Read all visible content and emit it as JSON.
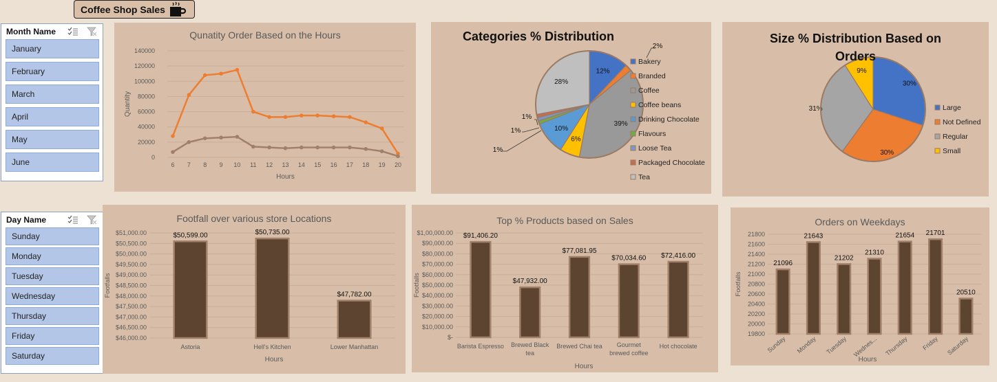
{
  "app_title": "Coffee Shop Sales",
  "month_slicer": {
    "header": "Month Name",
    "items": [
      "January",
      "February",
      "March",
      "April",
      "May",
      "June"
    ]
  },
  "day_slicer": {
    "header": "Day Name",
    "items": [
      "Sunday",
      "Monday",
      "Tuesday",
      "Wednesday",
      "Thursday",
      "Friday",
      "Saturday"
    ]
  },
  "colors": {
    "accent_orange": "#ed7d31",
    "accent_brown": "#a0806a",
    "bar": "#5c4430",
    "slicer": "#b4c6e7"
  },
  "chart_data": [
    {
      "id": "hours",
      "type": "line",
      "title": "Qunatity Order Based on the Hours",
      "xlabel": "Hours",
      "ylabel": "Quantity",
      "x": [
        6,
        7,
        8,
        9,
        10,
        11,
        12,
        13,
        14,
        15,
        16,
        17,
        18,
        19,
        20
      ],
      "ylim": [
        0,
        140000
      ],
      "yticks": [
        "0",
        "20000",
        "40000",
        "60000",
        "80000",
        "100000",
        "120000",
        "140000"
      ],
      "series": [
        {
          "color": "#ed7d31",
          "values": [
            28000,
            82000,
            108000,
            110000,
            115000,
            60000,
            53000,
            53000,
            55000,
            55000,
            54000,
            53000,
            46000,
            38000,
            5000
          ]
        },
        {
          "color": "#a0806a",
          "values": [
            7000,
            20000,
            25000,
            26000,
            27000,
            14000,
            13000,
            12000,
            13000,
            13000,
            13000,
            13000,
            11000,
            8000,
            1500
          ]
        }
      ]
    },
    {
      "id": "categories",
      "type": "pie",
      "title": "Categories % Distribution",
      "labels": [
        "Bakery",
        "Branded",
        "Coffee",
        "Coffee beans",
        "Drinking Chocolate",
        "Flavours",
        "Loose Tea",
        "Packaged Chocolate",
        "Tea"
      ],
      "values": [
        12,
        2,
        39,
        6,
        10,
        1,
        1,
        1,
        28
      ],
      "value_labels": [
        "12%",
        "2%",
        "39%",
        "6%",
        "10%",
        "1%",
        "1%",
        "1%",
        "28%"
      ],
      "colors": [
        "#4472c4",
        "#ed7d31",
        "#999999",
        "#ffc000",
        "#5b9bd5",
        "#70ad47",
        "#7f96c8",
        "#c07050",
        "#bfbfbf"
      ],
      "legend": "right"
    },
    {
      "id": "sizes",
      "type": "pie",
      "title": "Size % Distribution Based on Orders",
      "labels": [
        "Large",
        "Not Defined",
        "Regular",
        "Small"
      ],
      "values": [
        30,
        30,
        31,
        9
      ],
      "value_labels": [
        "30%",
        "30%",
        "31%",
        "9%"
      ],
      "colors": [
        "#4472c4",
        "#ed7d31",
        "#a5a5a5",
        "#ffc000"
      ],
      "legend": "right"
    },
    {
      "id": "locations",
      "type": "bar",
      "title": "Footfall over various store Locations",
      "xlabel": "Hours",
      "ylabel": "Footfalls",
      "categories": [
        "Astoria",
        "Hell's Kitchen",
        "Lower Manhattan"
      ],
      "values": [
        50599.0,
        50735.0,
        47782.0
      ],
      "data_labels": [
        "$50,599.00",
        "$50,735.00",
        "$47,782.00"
      ],
      "ylim": [
        46000,
        51000
      ],
      "yticks": [
        "$46,000.00",
        "$46,500.00",
        "$47,000.00",
        "$47,500.00",
        "$48,000.00",
        "$48,500.00",
        "$49,000.00",
        "$49,500.00",
        "$50,000.00",
        "$50,500.00",
        "$51,000.00"
      ]
    },
    {
      "id": "products",
      "type": "bar",
      "title": "Top % Products based on Sales",
      "xlabel": "Hours",
      "ylabel": "Footfalls",
      "categories": [
        "Barista Espresso",
        "Brewed Black tea",
        "Brewed Chai tea",
        "Gourmet brewed coffee",
        "Hot chocolate"
      ],
      "values": [
        91406.2,
        47932.0,
        77081.95,
        70034.6,
        72416.0
      ],
      "data_labels": [
        "$91,406.20",
        "$47,932.00",
        "$77,081.95",
        "$70,034.60",
        "$72,416.00"
      ],
      "ylim": [
        0,
        100000
      ],
      "yticks": [
        "$-",
        "$10,000.00",
        "$20,000.00",
        "$30,000.00",
        "$40,000.00",
        "$50,000.00",
        "$60,000.00",
        "$70,000.00",
        "$80,000.00",
        "$90,000.00",
        "$1,00,000.00"
      ]
    },
    {
      "id": "weekdays",
      "type": "bar",
      "title": "Orders on Weekdays",
      "xlabel": "Hours",
      "ylabel": "Footfalls",
      "categories": [
        "Sunday",
        "Monday",
        "Tuesday",
        "Wednes...",
        "Thursday",
        "Friday",
        "Saturday"
      ],
      "values": [
        21096,
        21643,
        21202,
        21310,
        21654,
        21701,
        20510
      ],
      "data_labels": [
        "21096",
        "21643",
        "21202",
        "21310",
        "21654",
        "21701",
        "20510"
      ],
      "ylim": [
        19800,
        21800
      ],
      "yticks": [
        "19800",
        "20000",
        "20200",
        "20400",
        "20600",
        "20800",
        "21000",
        "21200",
        "21400",
        "21600",
        "21800"
      ]
    }
  ]
}
